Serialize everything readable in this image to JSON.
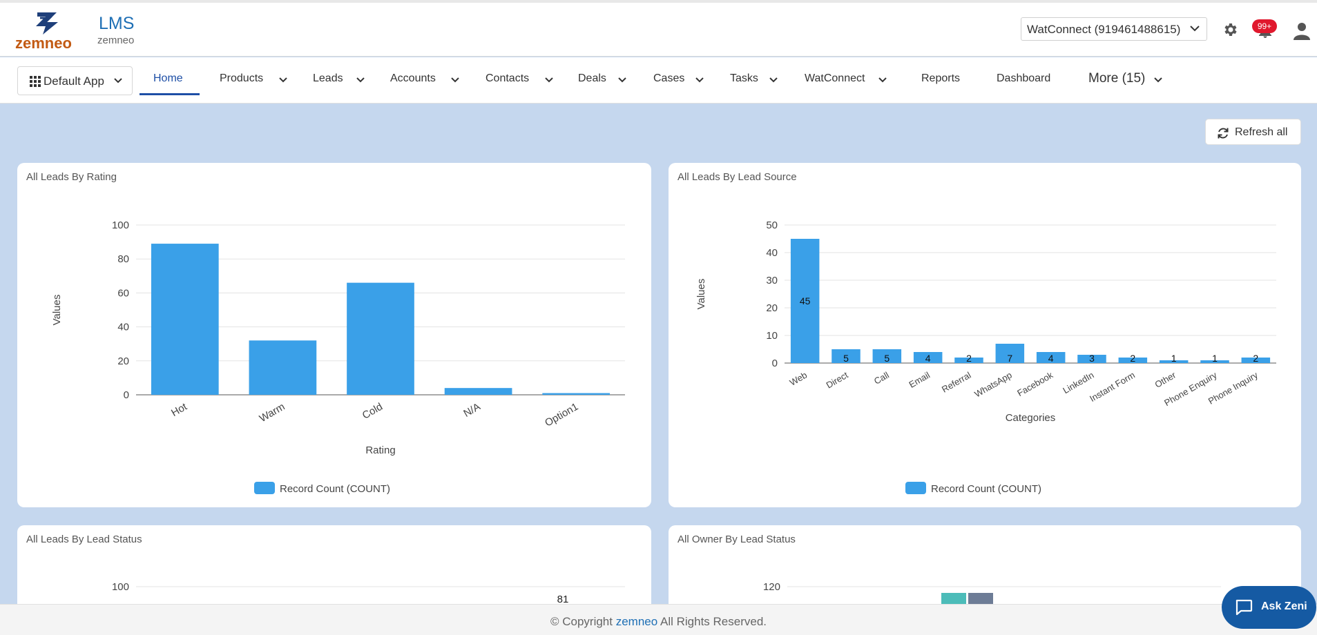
{
  "header": {
    "logo_text": "zemneo",
    "app_title": "LMS",
    "app_subtitle": "zemneo",
    "watconnect_select": "WatConnect (919461488615)",
    "notification_badge": "99+"
  },
  "nav": {
    "app_switcher": "Default App",
    "items": [
      {
        "label": "Home",
        "dropdown": false
      },
      {
        "label": "Products",
        "dropdown": true
      },
      {
        "label": "Leads",
        "dropdown": true
      },
      {
        "label": "Accounts",
        "dropdown": true
      },
      {
        "label": "Contacts",
        "dropdown": true
      },
      {
        "label": "Deals",
        "dropdown": true
      },
      {
        "label": "Cases",
        "dropdown": true
      },
      {
        "label": "Tasks",
        "dropdown": true
      },
      {
        "label": "WatConnect",
        "dropdown": true
      },
      {
        "label": "Reports",
        "dropdown": false
      },
      {
        "label": "Dashboard",
        "dropdown": false
      },
      {
        "label": "More (15)",
        "dropdown": true
      }
    ],
    "active": "Home"
  },
  "toolbar": {
    "refresh_label": "Refresh all"
  },
  "colors": {
    "bar": "#3aa0e8",
    "accent": "#1e4fa6",
    "teal": "#4cbcb9",
    "slate": "#6d7c96"
  },
  "cards": [
    {
      "title": "All Leads By Rating"
    },
    {
      "title": "All Leads By Lead Source"
    },
    {
      "title": "All Leads By Lead Status"
    },
    {
      "title": "All Owner By Lead Status"
    }
  ],
  "chart_data": [
    {
      "type": "bar",
      "title": "All Leads By Rating",
      "categories": [
        "Hot",
        "Warm",
        "Cold",
        "N/A",
        "Option1"
      ],
      "series": [
        {
          "name": "Record Count (COUNT)",
          "values": [
            89,
            32,
            66,
            4,
            1
          ]
        }
      ],
      "xlabel": "Rating",
      "ylabel": "Values",
      "ylim": [
        0,
        100
      ],
      "yticks": [
        0,
        20,
        40,
        60,
        80,
        100
      ],
      "grid": true,
      "legend": "bottom"
    },
    {
      "type": "bar",
      "title": "All Leads By Lead Source",
      "categories": [
        "Web",
        "Direct",
        "Call",
        "Email",
        "Referral",
        "WhatsApp",
        "Facebook",
        "LinkedIn",
        "Instant Form",
        "Other",
        "Phone Enquiry",
        "Phone Inquiry"
      ],
      "series": [
        {
          "name": "Record Count (COUNT)",
          "values": [
            45,
            5,
            5,
            4,
            2,
            7,
            4,
            3,
            2,
            1,
            1,
            2
          ]
        }
      ],
      "xlabel": "Categories",
      "ylabel": "Values",
      "ylim": [
        0,
        50
      ],
      "yticks": [
        0,
        10,
        20,
        30,
        40,
        50
      ],
      "grid": true,
      "legend": "bottom",
      "data_labels": true
    },
    {
      "type": "bar",
      "title": "All Leads By Lead Status",
      "yticks_visible": [
        100
      ],
      "visible_data_label": "81"
    },
    {
      "type": "bar",
      "title": "All Owner By Lead Status",
      "yticks_visible": [
        120
      ]
    }
  ],
  "footer": {
    "copyright": "© Copyright",
    "brand": "zemneo",
    "rights": "All Rights Reserved."
  },
  "ask": {
    "label": "Ask Zeni"
  }
}
